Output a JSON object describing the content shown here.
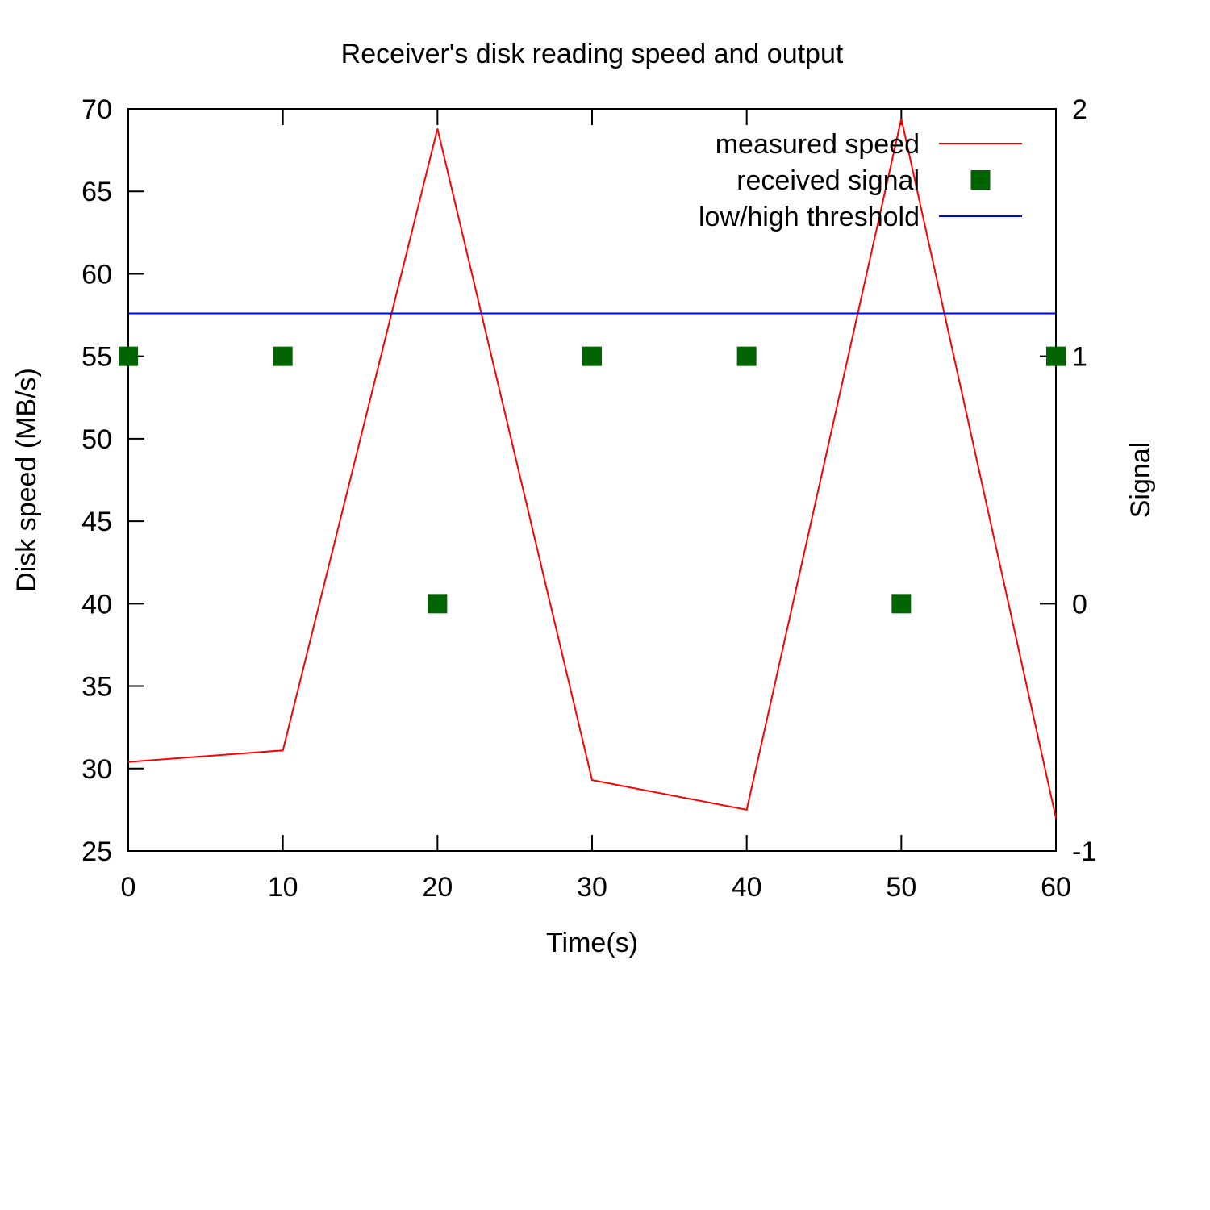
{
  "chart_data": {
    "type": "line",
    "title": "Receiver's disk reading speed and output",
    "xlabel": "Time(s)",
    "ylabel": "Disk speed (MB/s)",
    "y2label": "Signal",
    "xlim": [
      0,
      60
    ],
    "ylim": [
      25,
      70
    ],
    "y2lim": [
      -1,
      2
    ],
    "xticks": [
      0,
      10,
      20,
      30,
      40,
      50,
      60
    ],
    "yticks": [
      25,
      30,
      35,
      40,
      45,
      50,
      55,
      60,
      65,
      70
    ],
    "y2ticks": [
      -1,
      0,
      1,
      2
    ],
    "grid": false,
    "legend_position": "top-right",
    "series": [
      {
        "name": "measured speed",
        "kind": "line",
        "axis": "left",
        "color": "#ff0000",
        "x": [
          0,
          10,
          20,
          30,
          40,
          50,
          60
        ],
        "values": [
          30.4,
          31.1,
          68.8,
          29.3,
          27.5,
          69.4,
          27.0
        ]
      },
      {
        "name": "received signal",
        "kind": "points",
        "axis": "right",
        "color": "#006400",
        "x": [
          0,
          10,
          20,
          30,
          40,
          50,
          60
        ],
        "values": [
          1,
          1,
          0,
          1,
          1,
          0,
          1
        ]
      },
      {
        "name": "low/high threshold",
        "kind": "hline",
        "axis": "left",
        "color": "#0000ff",
        "value": 57.6
      }
    ]
  }
}
